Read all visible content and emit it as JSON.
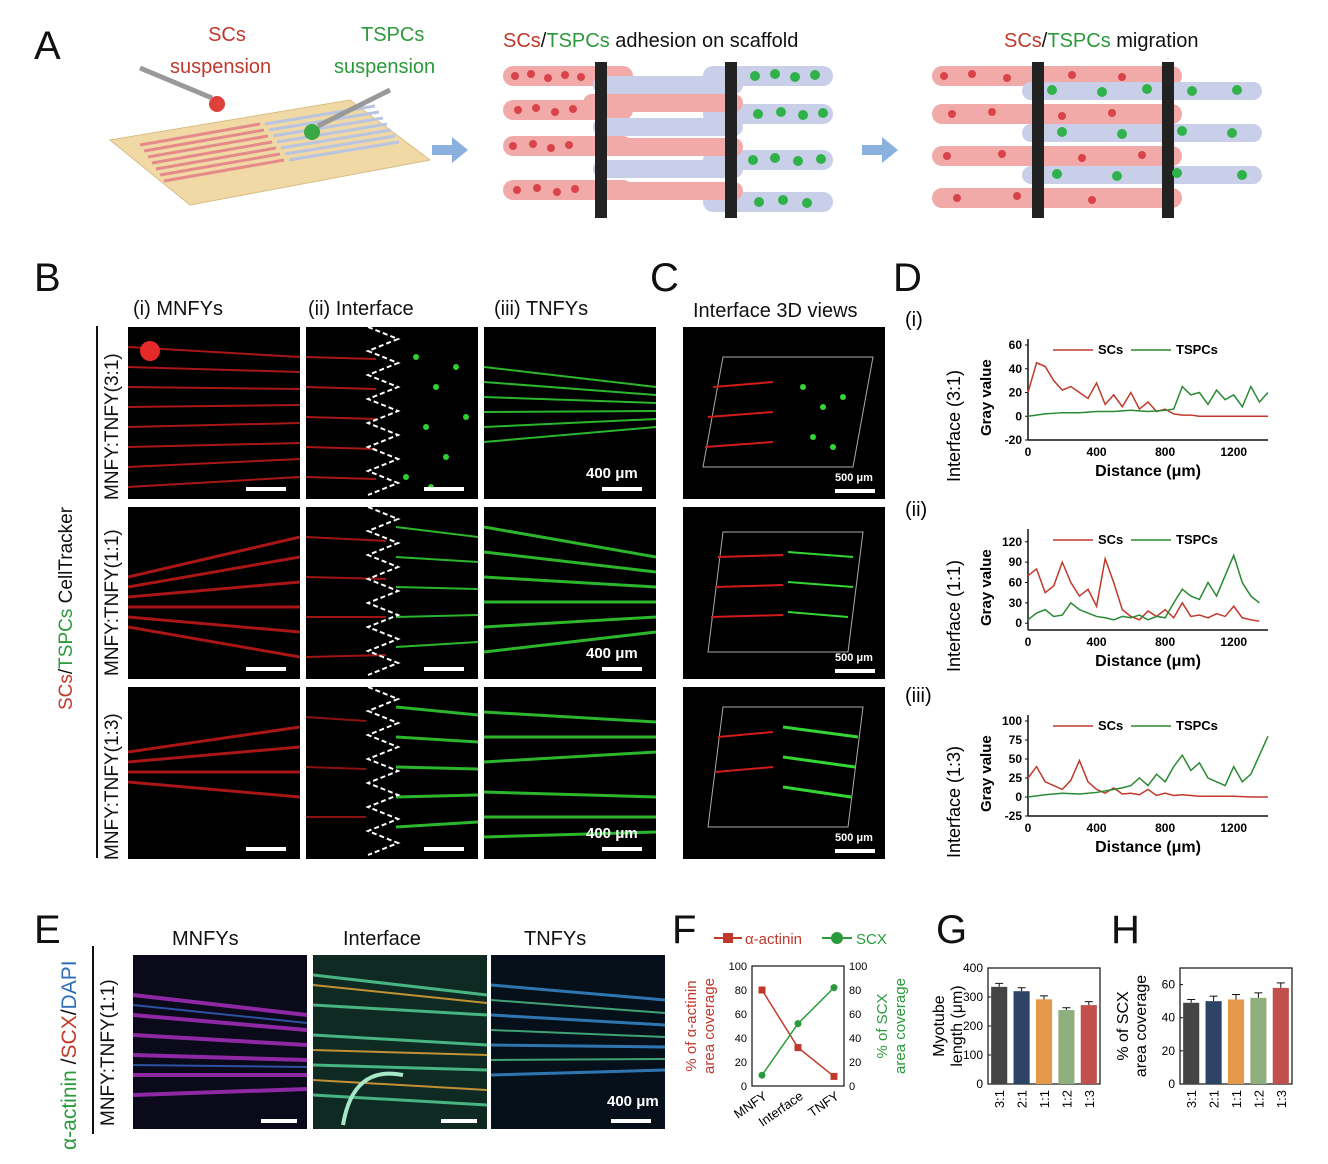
{
  "panels": {
    "A": "A",
    "B": "B",
    "C": "C",
    "D": "D",
    "E": "E",
    "F": "F",
    "G": "G",
    "H": "H"
  },
  "panelA": {
    "scs_suspension_line1": "SCs",
    "scs_suspension_line2": "suspension",
    "tspcs_suspension_line1": "TSPCs",
    "tspcs_suspension_line2": "suspension",
    "adhesion_scs": "SCs",
    "adhesion_slash": "/",
    "adhesion_tspcs": "TSPCs",
    "adhesion_rest": " adhesion on scaffold",
    "migration_scs": "SCs",
    "migration_slash": "/",
    "migration_tspcs": "TSPCs",
    "migration_rest": " migration",
    "colors": {
      "scs": "#c0392b",
      "tspcs": "#2a9a3a"
    }
  },
  "panelB": {
    "col_i": "(i)  MNFYs",
    "col_ii": "(ii)  Interface",
    "col_iii": "(iii)  TNFYs",
    "side_scs": "SCs",
    "side_slash": "/",
    "side_tspcs": "TSPCs",
    "side_rest": " CellTracker",
    "rows": [
      "MNFY:TNFY(3:1)",
      "MNFY:TNFY(1:1)",
      "MNFY:TNFY(1:3)"
    ],
    "scale": "400 μm"
  },
  "panelC": {
    "title": "Interface 3D views",
    "scale": "500 μm"
  },
  "panelD": {
    "charts": [
      {
        "roman": "(i)",
        "ylabel_outer": "Interface (3:1)",
        "ylabel": "Gray value",
        "xlabel": "Distance (μm)",
        "yticks": [
          "60",
          "40",
          "20",
          "0",
          "-20"
        ],
        "xticks": [
          "0",
          "400",
          "800",
          "1200"
        ],
        "legend": [
          "SCs",
          "TSPCs"
        ]
      },
      {
        "roman": "(ii)",
        "ylabel_outer": "Interface (1:1)",
        "ylabel": "Gray value",
        "xlabel": "Distance (μm)",
        "yticks": [
          "120",
          "90",
          "60",
          "30",
          "0"
        ],
        "xticks": [
          "0",
          "400",
          "800",
          "1200"
        ],
        "legend": [
          "SCs",
          "TSPCs"
        ]
      },
      {
        "roman": "(iii)",
        "ylabel_outer": "Interface (1:3)",
        "ylabel": "Gray value",
        "xlabel": "Distance (μm)",
        "yticks": [
          "100",
          "75",
          "50",
          "25",
          "0",
          "-25"
        ],
        "xticks": [
          "0",
          "400",
          "800",
          "1200"
        ],
        "legend": [
          "SCs",
          "TSPCs"
        ]
      }
    ]
  },
  "panelE": {
    "side_a": "α-actinin",
    "side_b": " /",
    "side_c": "SCX",
    "side_d": "/",
    "side_e": "DAPI",
    "row": "MNFY:TNFY(1:1)",
    "cols": [
      "MNFYs",
      "Interface",
      "TNFYs"
    ],
    "scale": "400 μm"
  },
  "chart_data": [
    {
      "type": "line",
      "panel": "D(i)",
      "x_unit": "μm",
      "xlim": [
        0,
        1400
      ],
      "ylim": [
        -20,
        60
      ],
      "series": [
        {
          "name": "SCs",
          "x": [
            0,
            50,
            100,
            150,
            200,
            250,
            300,
            350,
            400,
            450,
            500,
            550,
            600,
            650,
            700,
            750,
            800,
            850,
            900,
            950,
            1000,
            1100,
            1200,
            1300,
            1400
          ],
          "values": [
            20,
            45,
            42,
            30,
            22,
            25,
            20,
            15,
            28,
            10,
            18,
            8,
            20,
            6,
            12,
            4,
            6,
            2,
            1,
            1,
            0,
            0,
            0,
            0,
            0
          ]
        },
        {
          "name": "TSPCs",
          "x": [
            0,
            100,
            200,
            300,
            400,
            500,
            600,
            700,
            800,
            850,
            900,
            950,
            1000,
            1050,
            1100,
            1150,
            1200,
            1250,
            1300,
            1350,
            1400
          ],
          "values": [
            0,
            2,
            3,
            3,
            4,
            4,
            5,
            4,
            5,
            6,
            25,
            18,
            20,
            10,
            22,
            14,
            18,
            8,
            25,
            12,
            20
          ]
        }
      ]
    },
    {
      "type": "line",
      "panel": "D(ii)",
      "x_unit": "μm",
      "xlim": [
        0,
        1400
      ],
      "ylim": [
        -10,
        130
      ],
      "series": [
        {
          "name": "SCs",
          "x": [
            0,
            50,
            100,
            150,
            200,
            250,
            300,
            350,
            400,
            450,
            500,
            550,
            600,
            650,
            700,
            750,
            800,
            850,
            900,
            950,
            1000,
            1050,
            1100,
            1150,
            1200,
            1250,
            1300,
            1350
          ],
          "values": [
            70,
            80,
            45,
            55,
            90,
            60,
            40,
            50,
            25,
            95,
            60,
            20,
            10,
            5,
            18,
            10,
            20,
            8,
            30,
            10,
            12,
            8,
            14,
            10,
            25,
            8,
            5,
            3
          ]
        },
        {
          "name": "TSPCs",
          "x": [
            0,
            50,
            100,
            150,
            200,
            250,
            300,
            350,
            400,
            450,
            500,
            550,
            600,
            650,
            700,
            750,
            800,
            850,
            900,
            950,
            1000,
            1050,
            1100,
            1150,
            1200,
            1250,
            1300,
            1350
          ],
          "values": [
            5,
            15,
            20,
            10,
            12,
            30,
            20,
            15,
            10,
            8,
            5,
            10,
            8,
            12,
            5,
            10,
            8,
            30,
            50,
            40,
            35,
            60,
            40,
            70,
            100,
            60,
            40,
            30
          ]
        }
      ]
    },
    {
      "type": "line",
      "panel": "D(iii)",
      "x_unit": "μm",
      "xlim": [
        0,
        1400
      ],
      "ylim": [
        -25,
        100
      ],
      "series": [
        {
          "name": "SCs",
          "x": [
            0,
            50,
            100,
            150,
            200,
            250,
            300,
            350,
            400,
            450,
            500,
            550,
            600,
            650,
            700,
            750,
            800,
            850,
            900,
            950,
            1000,
            1100,
            1200,
            1300,
            1400
          ],
          "values": [
            25,
            40,
            20,
            15,
            10,
            22,
            48,
            20,
            10,
            5,
            12,
            4,
            5,
            3,
            10,
            2,
            5,
            2,
            3,
            2,
            1,
            1,
            1,
            0,
            0
          ]
        },
        {
          "name": "TSPCs",
          "x": [
            0,
            100,
            200,
            300,
            400,
            500,
            550,
            600,
            650,
            700,
            750,
            800,
            850,
            900,
            950,
            1000,
            1050,
            1100,
            1150,
            1200,
            1250,
            1300,
            1350,
            1400
          ],
          "values": [
            0,
            3,
            5,
            4,
            6,
            10,
            12,
            15,
            25,
            15,
            30,
            20,
            40,
            55,
            35,
            45,
            25,
            20,
            15,
            40,
            20,
            30,
            55,
            80
          ]
        }
      ]
    },
    {
      "type": "line",
      "panel": "F",
      "categories": [
        "MNFY",
        "Interface",
        "TNFY"
      ],
      "ylabel": "% of α-actinin area coverage",
      "y2label": "% of SCX area coverage",
      "ylim": [
        0,
        100
      ],
      "yticks": [
        "0",
        "20",
        "40",
        "60",
        "80",
        "100"
      ],
      "series": [
        {
          "name": "α-actinin",
          "values": [
            80,
            32,
            8
          ],
          "errors": [
            3,
            2,
            1.5
          ],
          "color": "#c0392b",
          "marker": "square"
        },
        {
          "name": "SCX",
          "values": [
            9,
            52,
            82
          ],
          "errors": [
            2,
            3,
            3
          ],
          "color": "#2a9a3a",
          "marker": "circle"
        }
      ]
    },
    {
      "type": "bar",
      "panel": "G",
      "categories": [
        "3:1",
        "2:1",
        "1:1",
        "1:2",
        "1:3"
      ],
      "values": [
        335,
        320,
        292,
        255,
        272
      ],
      "errors": [
        12,
        12,
        12,
        8,
        12
      ],
      "ylabel_line1": "Myotube",
      "ylabel_line2": "length (μm)",
      "ylim": [
        0,
        400
      ],
      "yticks": [
        "0",
        "100",
        "200",
        "300",
        "400"
      ],
      "colors": [
        "#444444",
        "#2e4466",
        "#e59a4b",
        "#8fb07e",
        "#c0504d"
      ]
    },
    {
      "type": "bar",
      "panel": "H",
      "categories": [
        "3:1",
        "2:1",
        "1:1",
        "1:2",
        "1:3"
      ],
      "values": [
        49,
        50,
        51,
        52,
        58
      ],
      "errors": [
        2,
        3,
        3,
        3,
        3
      ],
      "ylabel_line1": "% of SCX",
      "ylabel_line2": "area coverage",
      "ylim": [
        0,
        70
      ],
      "yticks": [
        "0",
        "20",
        "40",
        "60"
      ],
      "colors": [
        "#444444",
        "#2e4466",
        "#e59a4b",
        "#8fb07e",
        "#c0504d"
      ]
    }
  ]
}
